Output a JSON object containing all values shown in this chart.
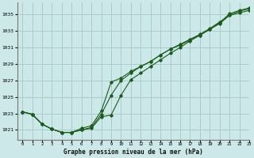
{
  "title": "Graphe pression niveau de la mer (hPa)",
  "bg_color": "#cce8e8",
  "grid_color": "#aacccc",
  "line_color": "#1a5c1a",
  "xlim": [
    -0.5,
    23
  ],
  "ylim": [
    1019.8,
    1036.5
  ],
  "yticks": [
    1021,
    1023,
    1025,
    1027,
    1029,
    1031,
    1033,
    1035
  ],
  "xticks": [
    0,
    1,
    2,
    3,
    4,
    5,
    6,
    7,
    8,
    9,
    10,
    11,
    12,
    13,
    14,
    15,
    16,
    17,
    18,
    19,
    20,
    21,
    22,
    23
  ],
  "series1": [
    1023.2,
    1022.9,
    1021.7,
    1021.1,
    1020.7,
    1020.7,
    1021.0,
    1021.3,
    1022.9,
    1025.2,
    1027.0,
    1027.9,
    1028.7,
    1029.3,
    1030.1,
    1030.8,
    1031.3,
    1031.9,
    1032.5,
    1033.2,
    1033.9,
    1034.9,
    1035.2,
    1035.5
  ],
  "series2": [
    1023.2,
    1022.9,
    1021.7,
    1021.1,
    1020.7,
    1020.7,
    1021.2,
    1021.5,
    1023.3,
    1026.8,
    1027.3,
    1028.1,
    1028.7,
    1029.3,
    1030.1,
    1030.8,
    1031.4,
    1032.0,
    1032.6,
    1033.3,
    1034.1,
    1034.9,
    1035.4,
    1035.7
  ],
  "series3": [
    1023.2,
    1022.9,
    1021.7,
    1021.1,
    1020.7,
    1020.7,
    1021.0,
    1021.2,
    1022.6,
    1022.8,
    1025.2,
    1027.1,
    1027.9,
    1028.7,
    1029.5,
    1030.3,
    1031.0,
    1031.8,
    1032.5,
    1033.2,
    1034.0,
    1035.1,
    1035.5,
    1035.8
  ]
}
